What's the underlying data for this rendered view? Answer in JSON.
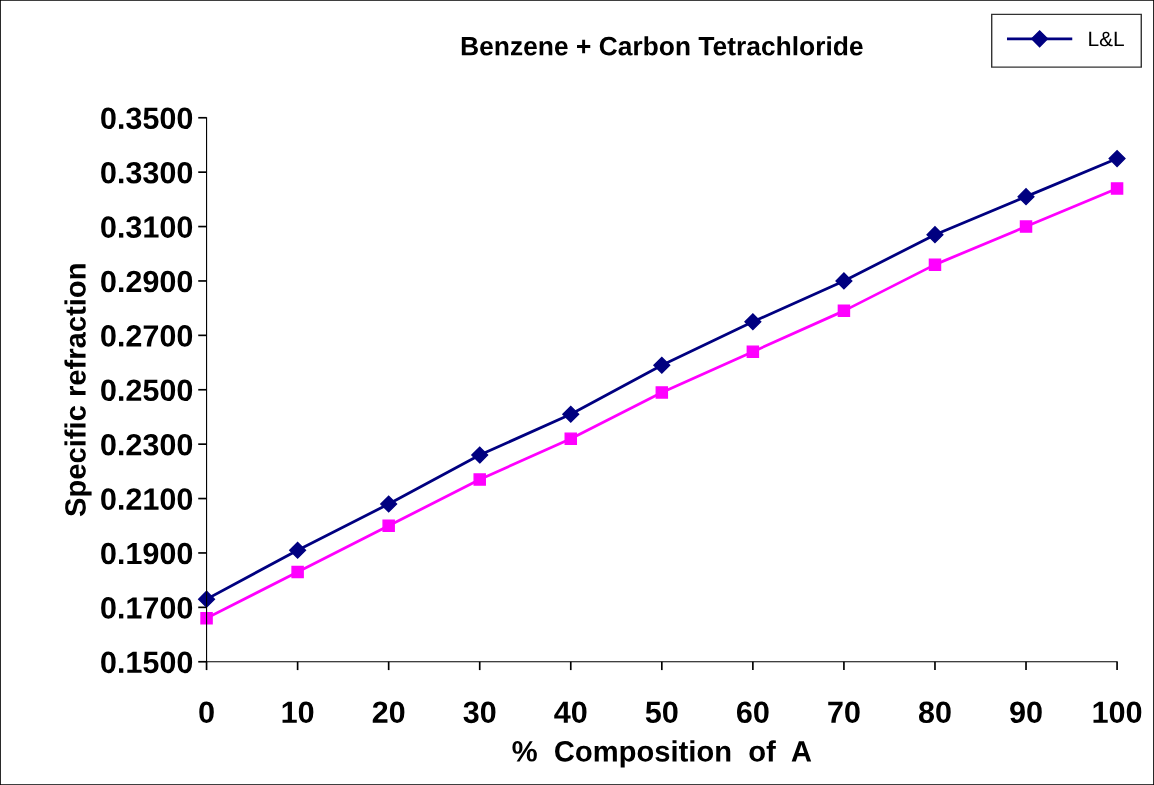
{
  "chart_data": {
    "type": "line",
    "title": "Benzene + Carbon Tetrachloride",
    "xlabel": "%  Composition  of  A",
    "ylabel": "Specific refraction",
    "x": [
      0,
      10,
      20,
      30,
      40,
      50,
      60,
      70,
      80,
      90,
      100
    ],
    "series": [
      {
        "name": "L&L",
        "color": "#000080",
        "marker": "diamond",
        "values": [
          0.173,
          0.191,
          0.208,
          0.226,
          0.241,
          0.259,
          0.275,
          0.29,
          0.307,
          0.321,
          0.335
        ]
      },
      {
        "color": "#ff00ff",
        "marker": "square",
        "values": [
          0.166,
          0.183,
          0.2,
          0.217,
          0.232,
          0.249,
          0.264,
          0.279,
          0.296,
          0.31,
          0.324
        ]
      }
    ],
    "xlim": [
      0,
      100
    ],
    "xticks": [
      0,
      10,
      20,
      30,
      40,
      50,
      60,
      70,
      80,
      90,
      100
    ],
    "ylim": [
      0.15,
      0.35
    ],
    "yticks": [
      {
        "value": 0.15,
        "label": "0.1500"
      },
      {
        "value": 0.17,
        "label": "0.1700"
      },
      {
        "value": 0.19,
        "label": "0.1900"
      },
      {
        "value": 0.21,
        "label": "0.2100"
      },
      {
        "value": 0.23,
        "label": "0.2300"
      },
      {
        "value": 0.25,
        "label": "0.2500"
      },
      {
        "value": 0.27,
        "label": "0.2700"
      },
      {
        "value": 0.29,
        "label": "0.2900"
      },
      {
        "value": 0.31,
        "label": "0.3100"
      },
      {
        "value": 0.33,
        "label": "0.3300"
      },
      {
        "value": 0.35,
        "label": "0.3500"
      }
    ],
    "grid": false,
    "legend": "top right",
    "line_style": "solid"
  }
}
